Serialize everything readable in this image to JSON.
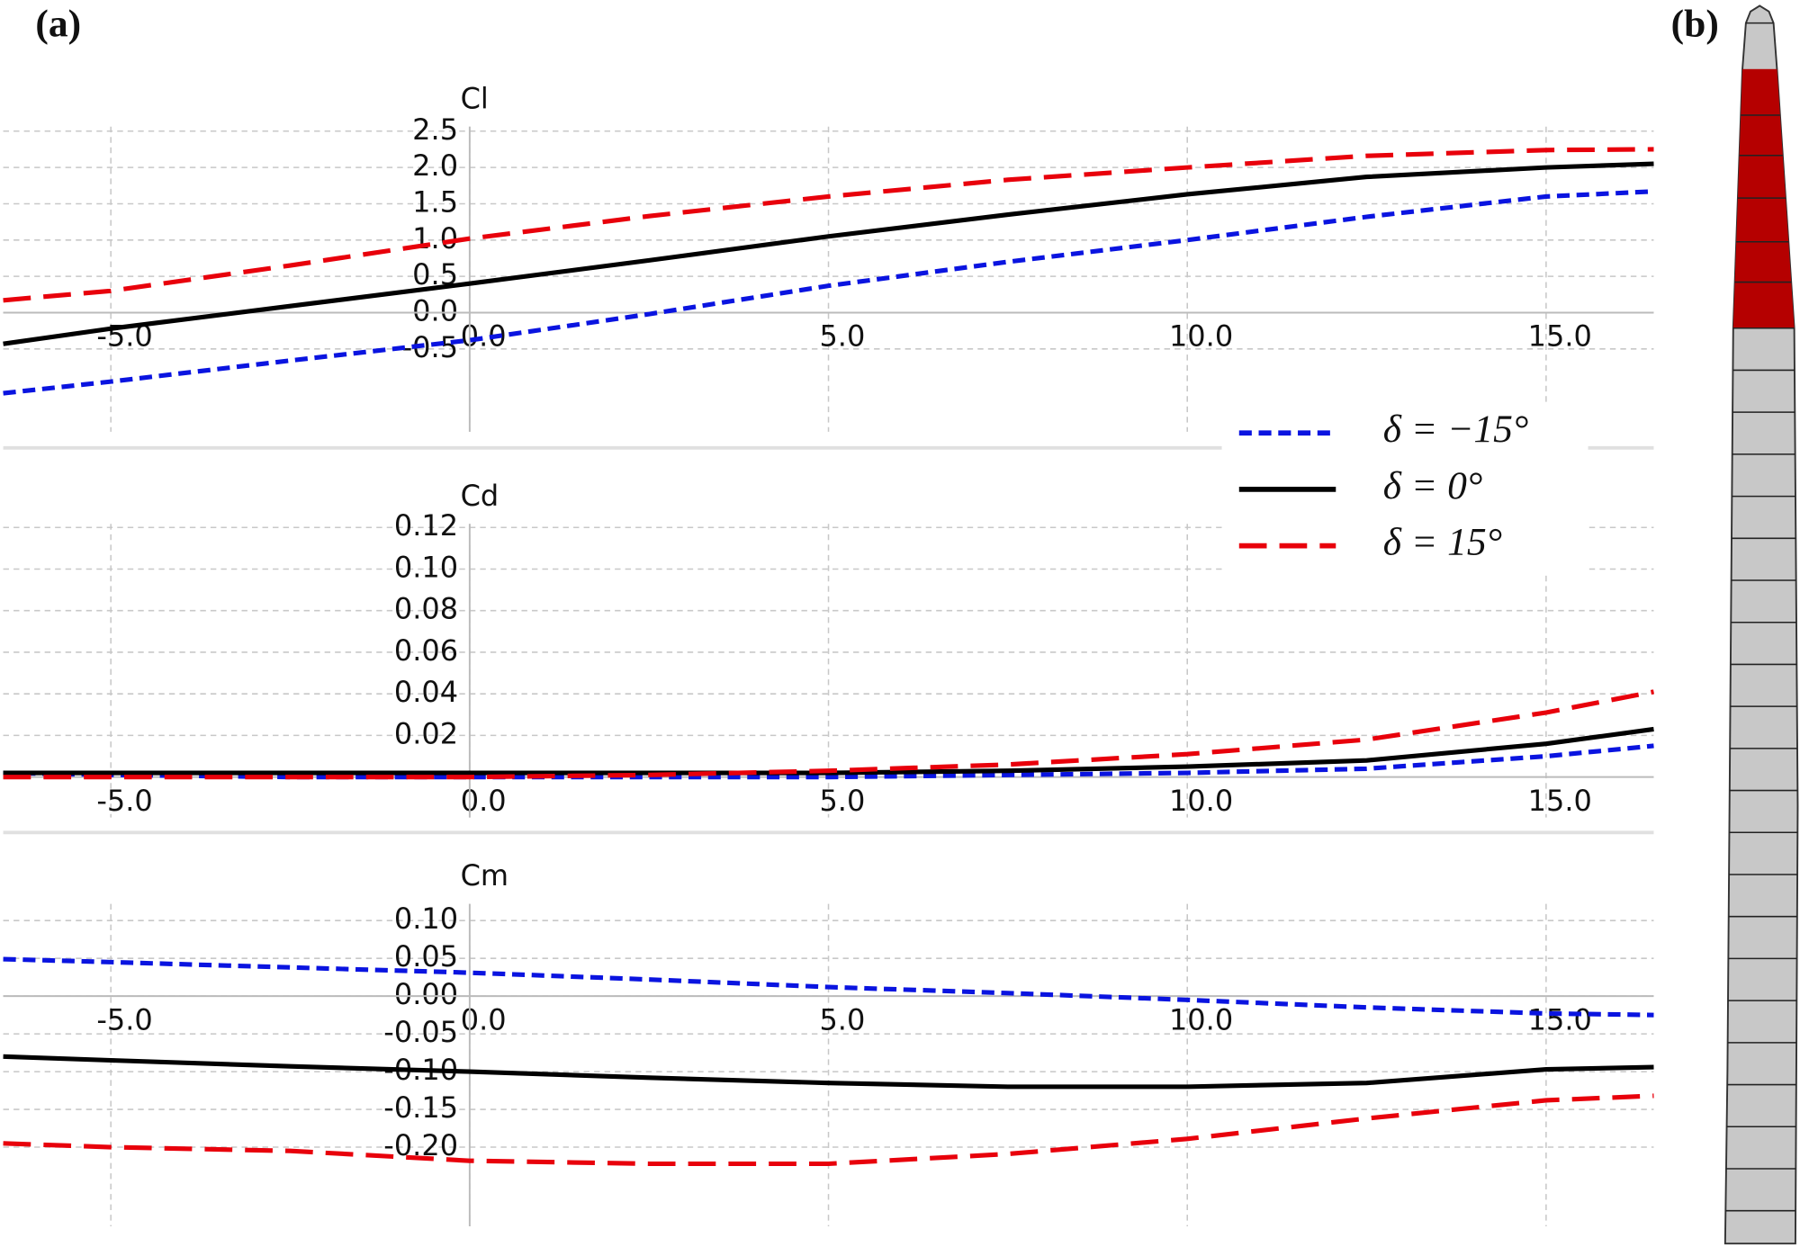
{
  "panel_labels": [
    "(a)",
    "(b)"
  ],
  "chart_data": [
    {
      "type": "line",
      "title": "Cl",
      "x": [
        -6.5,
        -5,
        -2.5,
        0,
        2.5,
        5,
        7.5,
        10,
        12.5,
        15,
        16.5
      ],
      "xlim": [
        -6.5,
        16.5
      ],
      "xticks": [
        {
          "value": -5,
          "label": "-5.0"
        },
        {
          "value": 0,
          "label": "0.0"
        },
        {
          "value": 5,
          "label": "5.0"
        },
        {
          "value": 10,
          "label": "10.0"
        },
        {
          "value": 15,
          "label": "15.0"
        }
      ],
      "ylim": [
        -1.8,
        2.8
      ],
      "yticks": [
        2.5,
        {
          "value": 2,
          "label": "2.0"
        },
        1.5,
        {
          "value": 1,
          "label": "1.0"
        },
        0.5,
        {
          "value": 0,
          "label": "0.0"
        },
        -0.5
      ],
      "grid": true,
      "series": [
        {
          "name": "δ = −15°",
          "color": "#0a14e0",
          "values": [
            -1.11,
            -0.95,
            -0.66,
            -0.38,
            -0.02,
            0.37,
            0.7,
            1.0,
            1.32,
            1.6,
            1.67
          ]
        },
        {
          "name": "δ = 0°",
          "color": "#000000",
          "values": [
            -0.43,
            -0.22,
            0.09,
            0.4,
            0.72,
            1.05,
            1.35,
            1.63,
            1.87,
            2.0,
            2.05
          ]
        },
        {
          "name": "δ = 15°",
          "color": "#e8000b",
          "values": [
            0.17,
            0.3,
            0.65,
            1.02,
            1.33,
            1.6,
            1.83,
            2.0,
            2.16,
            2.24,
            2.25
          ]
        }
      ]
    },
    {
      "type": "line",
      "title": "Cd",
      "x": [
        -6.5,
        -5,
        -2.5,
        0,
        2.5,
        5,
        7.5,
        10,
        12.5,
        15,
        16.5
      ],
      "xlim": [
        -6.5,
        16.5
      ],
      "xticks": [
        {
          "value": -5,
          "label": "-5.0"
        },
        {
          "value": 0,
          "label": "0.0"
        },
        {
          "value": 5,
          "label": "5.0"
        },
        {
          "value": 10,
          "label": "10.0"
        },
        {
          "value": 15,
          "label": "15.0"
        }
      ],
      "ylim": [
        -0.025,
        0.13
      ],
      "yticks": [
        0.12,
        {
          "value": 0.1,
          "label": "0.10"
        },
        0.08,
        0.06,
        0.04,
        0.02
      ],
      "grid": true,
      "series": [
        {
          "color": "#0a14e0",
          "values": [
            0.002,
            0.001,
            0,
            0,
            0,
            0,
            0.001,
            0.002,
            0.004,
            0.01,
            0.015
          ]
        },
        {
          "color": "#000000",
          "values": [
            0.002,
            0.002,
            0.002,
            0.002,
            0.002,
            0.002,
            0.003,
            0.005,
            0.008,
            0.016,
            0.023
          ]
        },
        {
          "color": "#e8000b",
          "values": [
            0,
            0,
            0,
            0,
            0.001,
            0.003,
            0.006,
            0.011,
            0.018,
            0.031,
            0.041
          ]
        }
      ]
    },
    {
      "type": "line",
      "title": "Cm",
      "x": [
        -6.5,
        -5,
        -2.5,
        0,
        2.5,
        5,
        7.5,
        10,
        12.5,
        15,
        16.5
      ],
      "xlim": [
        -6.5,
        16.5
      ],
      "xticks": [
        {
          "value": -5,
          "label": "-5.0"
        },
        {
          "value": 0,
          "label": "0.0"
        },
        {
          "value": 5,
          "label": "5.0"
        },
        {
          "value": 10,
          "label": "10.0"
        },
        {
          "value": 15,
          "label": "15.0"
        }
      ],
      "ylim": [
        -0.32,
        0.145
      ],
      "yticks": [
        {
          "value": 0.1,
          "label": "0.10"
        },
        0.05,
        {
          "value": 0,
          "label": "0.00"
        },
        -0.05,
        {
          "value": -0.1,
          "label": "-0.10"
        },
        -0.15,
        {
          "value": -0.2,
          "label": "-0.20"
        }
      ],
      "grid": true,
      "series": [
        {
          "color": "#0a14e0",
          "values": [
            0.049,
            0.045,
            0.038,
            0.031,
            0.022,
            0.012,
            0.004,
            -0.005,
            -0.015,
            -0.023,
            -0.025
          ]
        },
        {
          "color": "#000000",
          "values": [
            -0.08,
            -0.085,
            -0.093,
            -0.1,
            -0.108,
            -0.115,
            -0.12,
            -0.12,
            -0.115,
            -0.097,
            -0.094
          ]
        },
        {
          "color": "#e8000b",
          "values": [
            -0.195,
            -0.2,
            -0.205,
            -0.218,
            -0.222,
            -0.222,
            -0.209,
            -0.189,
            -0.162,
            -0.138,
            -0.132
          ]
        }
      ]
    }
  ]
}
